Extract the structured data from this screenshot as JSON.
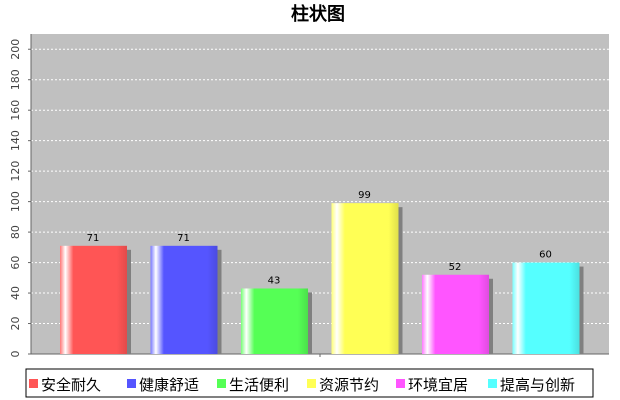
{
  "chart_data": {
    "type": "bar",
    "title": "柱状图",
    "xlabel": "",
    "ylabel": "",
    "categories": [
      "安全耐久",
      "健康舒适",
      "生活便利",
      "资源节约",
      "环境宜居",
      "提高与创新"
    ],
    "values": [
      71,
      71,
      43,
      99,
      52,
      60
    ],
    "colors": [
      "#ff5555",
      "#5555ff",
      "#55ff55",
      "#ffff55",
      "#ff55ff",
      "#55ffff"
    ],
    "ylim": [
      0,
      210
    ],
    "yticks": [
      0,
      20,
      40,
      60,
      80,
      100,
      120,
      140,
      160,
      180,
      200
    ],
    "grid": true,
    "legend": "bottom",
    "plot_background": "#c0c0c0"
  }
}
